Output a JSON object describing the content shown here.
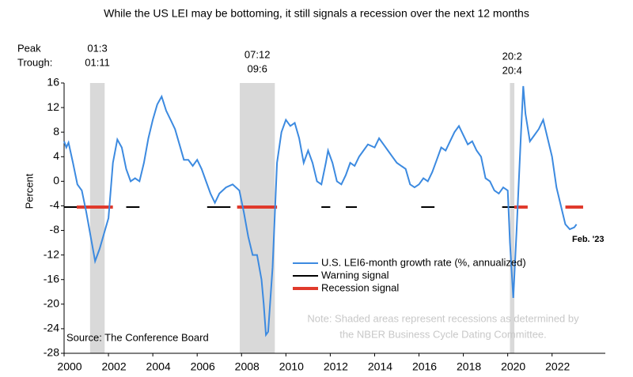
{
  "chart_data": {
    "type": "line",
    "title": "While the US LEI may be bottoming, it still signals a recession over the next 12 months",
    "ylabel": "Percent",
    "xlim": [
      2000,
      2024.4
    ],
    "ylim": [
      -28,
      16
    ],
    "xticks": [
      2000,
      2002,
      2004,
      2006,
      2008,
      2010,
      2012,
      2014,
      2016,
      2018,
      2020,
      2022
    ],
    "yticks": [
      16,
      12,
      8,
      4,
      0,
      -4,
      -8,
      -12,
      -16,
      -20,
      -24,
      -28
    ],
    "peak_label": "Peak",
    "trough_label": "Trough:",
    "recessions": [
      {
        "peak": "01:3",
        "trough": "01:11",
        "start": 2001.17,
        "end": 2001.83
      },
      {
        "peak": "07:12",
        "trough": "09:6",
        "start": 2007.92,
        "end": 2009.5
      },
      {
        "peak": "20:2",
        "trough": "20:4",
        "start": 2020.1,
        "end": 2020.3
      }
    ],
    "series": [
      {
        "name": "U.S. LEI6-month growth rate (%, annualized)",
        "color": "#3c8ae0",
        "x": [
          2000.0,
          2000.1,
          2000.2,
          2000.4,
          2000.6,
          2000.8,
          2001.0,
          2001.2,
          2001.4,
          2001.6,
          2001.8,
          2002.0,
          2002.2,
          2002.4,
          2002.6,
          2002.8,
          2003.0,
          2003.2,
          2003.4,
          2003.6,
          2003.8,
          2004.0,
          2004.2,
          2004.4,
          2004.6,
          2004.8,
          2005.0,
          2005.2,
          2005.4,
          2005.6,
          2005.8,
          2006.0,
          2006.2,
          2006.4,
          2006.6,
          2006.8,
          2007.0,
          2007.3,
          2007.6,
          2007.9,
          2008.1,
          2008.3,
          2008.5,
          2008.7,
          2008.9,
          2009.0,
          2009.1,
          2009.2,
          2009.4,
          2009.6,
          2009.8,
          2010.0,
          2010.2,
          2010.4,
          2010.6,
          2010.8,
          2011.0,
          2011.2,
          2011.4,
          2011.6,
          2011.8,
          2011.9,
          2012.1,
          2012.3,
          2012.5,
          2012.7,
          2012.9,
          2013.1,
          2013.3,
          2013.5,
          2013.7,
          2014.0,
          2014.2,
          2014.4,
          2014.6,
          2014.8,
          2015.0,
          2015.2,
          2015.4,
          2015.6,
          2015.8,
          2016.0,
          2016.2,
          2016.4,
          2016.6,
          2016.8,
          2017.0,
          2017.2,
          2017.4,
          2017.6,
          2017.8,
          2018.0,
          2018.2,
          2018.4,
          2018.6,
          2018.8,
          2019.0,
          2019.2,
          2019.4,
          2019.6,
          2019.8,
          2020.0,
          2020.1,
          2020.25,
          2020.4,
          2020.5,
          2020.6,
          2020.7,
          2020.8,
          2021.0,
          2021.2,
          2021.4,
          2021.6,
          2021.8,
          2022.0,
          2022.2,
          2022.4,
          2022.6,
          2022.8,
          2023.0,
          2023.1
        ],
        "values": [
          6.5,
          5.5,
          6.3,
          3,
          -0.5,
          -1.5,
          -5,
          -9,
          -13,
          -11,
          -8.5,
          -6,
          3,
          6.8,
          5.5,
          2,
          0,
          0.5,
          0,
          3,
          7,
          10,
          12.5,
          13.8,
          11.5,
          10,
          8.5,
          6,
          3.5,
          3.5,
          2.5,
          3.5,
          2,
          0,
          -2,
          -3.5,
          -2,
          -1,
          -0.5,
          -1.5,
          -5,
          -9,
          -12,
          -12,
          -16,
          -20,
          -25,
          -24.5,
          -14,
          3,
          8,
          10,
          9,
          9.5,
          7,
          3,
          5,
          3,
          0,
          -0.5,
          3,
          5,
          3,
          0,
          -0.5,
          1,
          3,
          2.5,
          4,
          5,
          6,
          5.5,
          7,
          6,
          5,
          4,
          3,
          2.5,
          2,
          -0.5,
          -1,
          -0.5,
          0.5,
          0,
          1.5,
          3.5,
          5.5,
          5,
          6.5,
          8,
          9,
          7.5,
          6,
          6.5,
          5,
          4,
          0.5,
          0,
          -1.5,
          -2,
          -1,
          -1.5,
          -10,
          -19,
          -8,
          0,
          8,
          15.5,
          11,
          6.5,
          7.5,
          8.5,
          10,
          7,
          4,
          -1,
          -4,
          -7,
          -7.8,
          -7.5,
          -7
        ]
      }
    ],
    "signals": [
      {
        "name": "Warning signal",
        "color": "#000000",
        "level": -4.2,
        "segments": [
          [
            2000,
            2000.57
          ],
          [
            2002.8,
            2003.4
          ],
          [
            2006.45,
            2007.5
          ],
          [
            2011.6,
            2012.0
          ],
          [
            2012.7,
            2013.2
          ],
          [
            2016.1,
            2016.7
          ],
          [
            2019.75,
            2020.3
          ]
        ]
      },
      {
        "name": "Recession signal",
        "color": "#e03a2c",
        "level": -4.2,
        "segments": [
          [
            2000.57,
            2002.2
          ],
          [
            2007.8,
            2009.6
          ],
          [
            2020.3,
            2020.9
          ],
          [
            2022.6,
            2023.4
          ]
        ]
      }
    ],
    "end_label": "Feb. '23",
    "source": "Source: The Conference Board",
    "note": [
      "Note: Shaded areas represent recessions as determined by",
      "the NBER Business Cycle Dating Committee."
    ]
  }
}
